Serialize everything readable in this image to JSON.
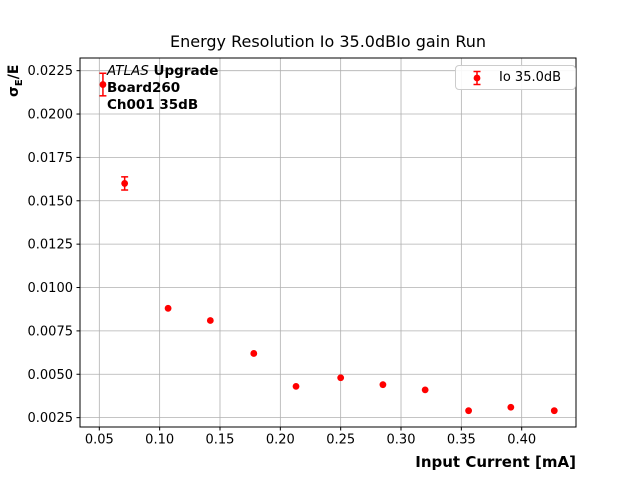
{
  "title": "Energy Resolution Io 35.0dBIo gain Run",
  "axis": {
    "xlabel": "Input Current [mA]",
    "ylabel_sigma": "σ",
    "ylabel_sub": "E",
    "ylabel_rest": "/E"
  },
  "legend": {
    "label": "Io 35.0dB"
  },
  "annotation": {
    "experiment": "ATLAS",
    "upgrade": " Upgrade",
    "board": "Board260",
    "channel": "Ch001 35dB"
  },
  "colors": {
    "marker": "#ff0000",
    "grid": "#b0b0b0",
    "axis": "#000000",
    "tick_label": "#000000",
    "legend_border": "#cccccc",
    "background": "#ffffff"
  },
  "chart_data": {
    "type": "scatter",
    "title": "Energy Resolution Io 35.0dBIo gain Run",
    "xlabel": "Input Current [mA]",
    "ylabel": "sigma_E / E",
    "grid": true,
    "legend_position": "upper right",
    "legend_entries": [
      "Io 35.0dB"
    ],
    "xlim": [
      0.034,
      0.445
    ],
    "ylim": [
      0.00196,
      0.02323
    ],
    "xticks": [
      0.05,
      0.1,
      0.15,
      0.2,
      0.25,
      0.3,
      0.35,
      0.4
    ],
    "yticks": [
      0.0025,
      0.005,
      0.0075,
      0.01,
      0.0125,
      0.015,
      0.0175,
      0.02,
      0.0225
    ],
    "series": [
      {
        "name": "Io 35.0dB",
        "marker": "circle",
        "color": "#ff0000",
        "x": [
          0.053,
          0.071,
          0.107,
          0.142,
          0.178,
          0.213,
          0.25,
          0.285,
          0.32,
          0.356,
          0.391,
          0.427
        ],
        "y": [
          0.0217,
          0.016,
          0.0088,
          0.0081,
          0.0062,
          0.0043,
          0.0048,
          0.0044,
          0.0041,
          0.0029,
          0.0031,
          0.0029
        ],
        "yerr": [
          0.00065,
          0.00038,
          0.0001,
          0.0001,
          0.0001,
          0.0001,
          0.0001,
          0.0001,
          0.0001,
          0.0001,
          0.0001,
          0.0001
        ]
      }
    ]
  }
}
